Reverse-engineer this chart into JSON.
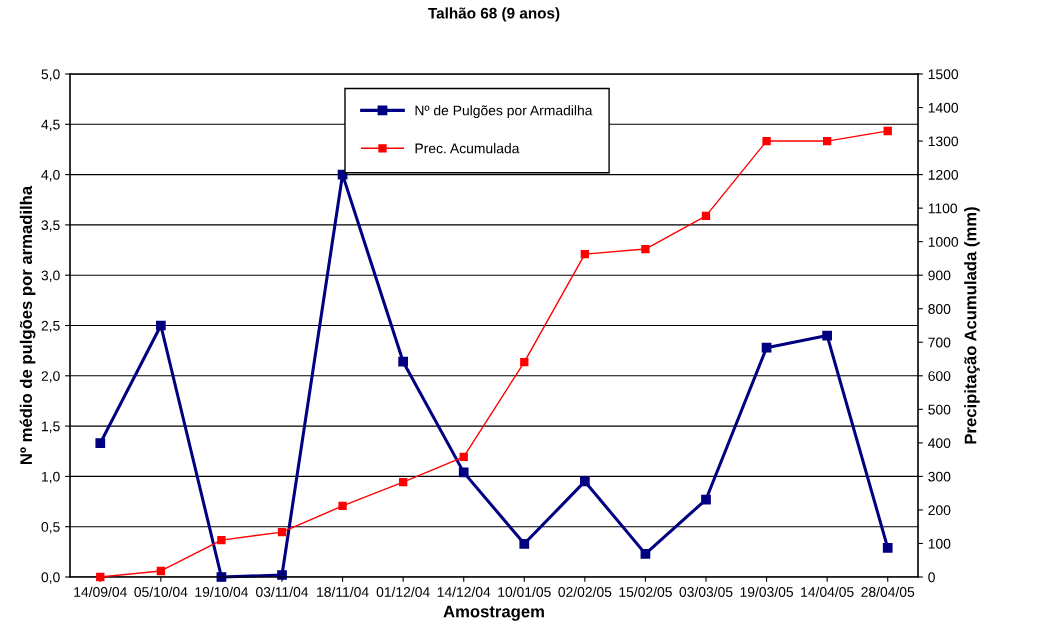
{
  "chart_data": {
    "type": "line",
    "title": "Talhão 68 (9 anos)",
    "xlabel": "Amostragem",
    "ylabel": "Nº médio de pulgões por armadilha",
    "y2label": "Precipitação Acumulada (mm)",
    "categories": [
      "14/09/04",
      "05/10/04",
      "19/10/04",
      "03/11/04",
      "18/11/04",
      "01/12/04",
      "14/12/04",
      "10/01/05",
      "02/02/05",
      "15/02/05",
      "03/03/05",
      "19/03/05",
      "14/04/05",
      "28/04/05"
    ],
    "series": [
      {
        "name": "Nº de Pulgões por Armadilha",
        "color": "#000080",
        "values": [
          1.33,
          2.5,
          0.0,
          0.02,
          4.0,
          2.14,
          1.04,
          0.33,
          0.95,
          0.23,
          0.77,
          2.28,
          2.4,
          0.29
        ]
      },
      {
        "name": "Prec. Acumulada",
        "color": "#ff0000",
        "axis": "y2",
        "values": [
          0,
          18,
          110,
          134,
          212,
          283,
          358,
          641,
          963,
          978,
          1077,
          1300,
          1300,
          1330
        ]
      }
    ],
    "ylim": [
      0,
      5
    ],
    "yticks": [
      {
        "value": 0,
        "label": "0,0"
      },
      {
        "value": 0.5,
        "label": "0,5"
      },
      {
        "value": 1,
        "label": "1,0"
      },
      {
        "value": 1.5,
        "label": "1,5"
      },
      {
        "value": 2,
        "label": "2,0"
      },
      {
        "value": 2.5,
        "label": "2,5"
      },
      {
        "value": 3,
        "label": "3,0"
      },
      {
        "value": 3.5,
        "label": "3,5"
      },
      {
        "value": 4,
        "label": "4,0"
      },
      {
        "value": 4.5,
        "label": "4,5"
      },
      {
        "value": 5,
        "label": "5,0"
      }
    ],
    "y2lim": [
      0,
      1500
    ],
    "y2ticks": [
      0,
      100,
      200,
      300,
      400,
      500,
      600,
      700,
      800,
      900,
      1000,
      1100,
      1200,
      1300,
      1400,
      1500
    ],
    "grid": "y",
    "legend": "top",
    "marker": "square"
  }
}
